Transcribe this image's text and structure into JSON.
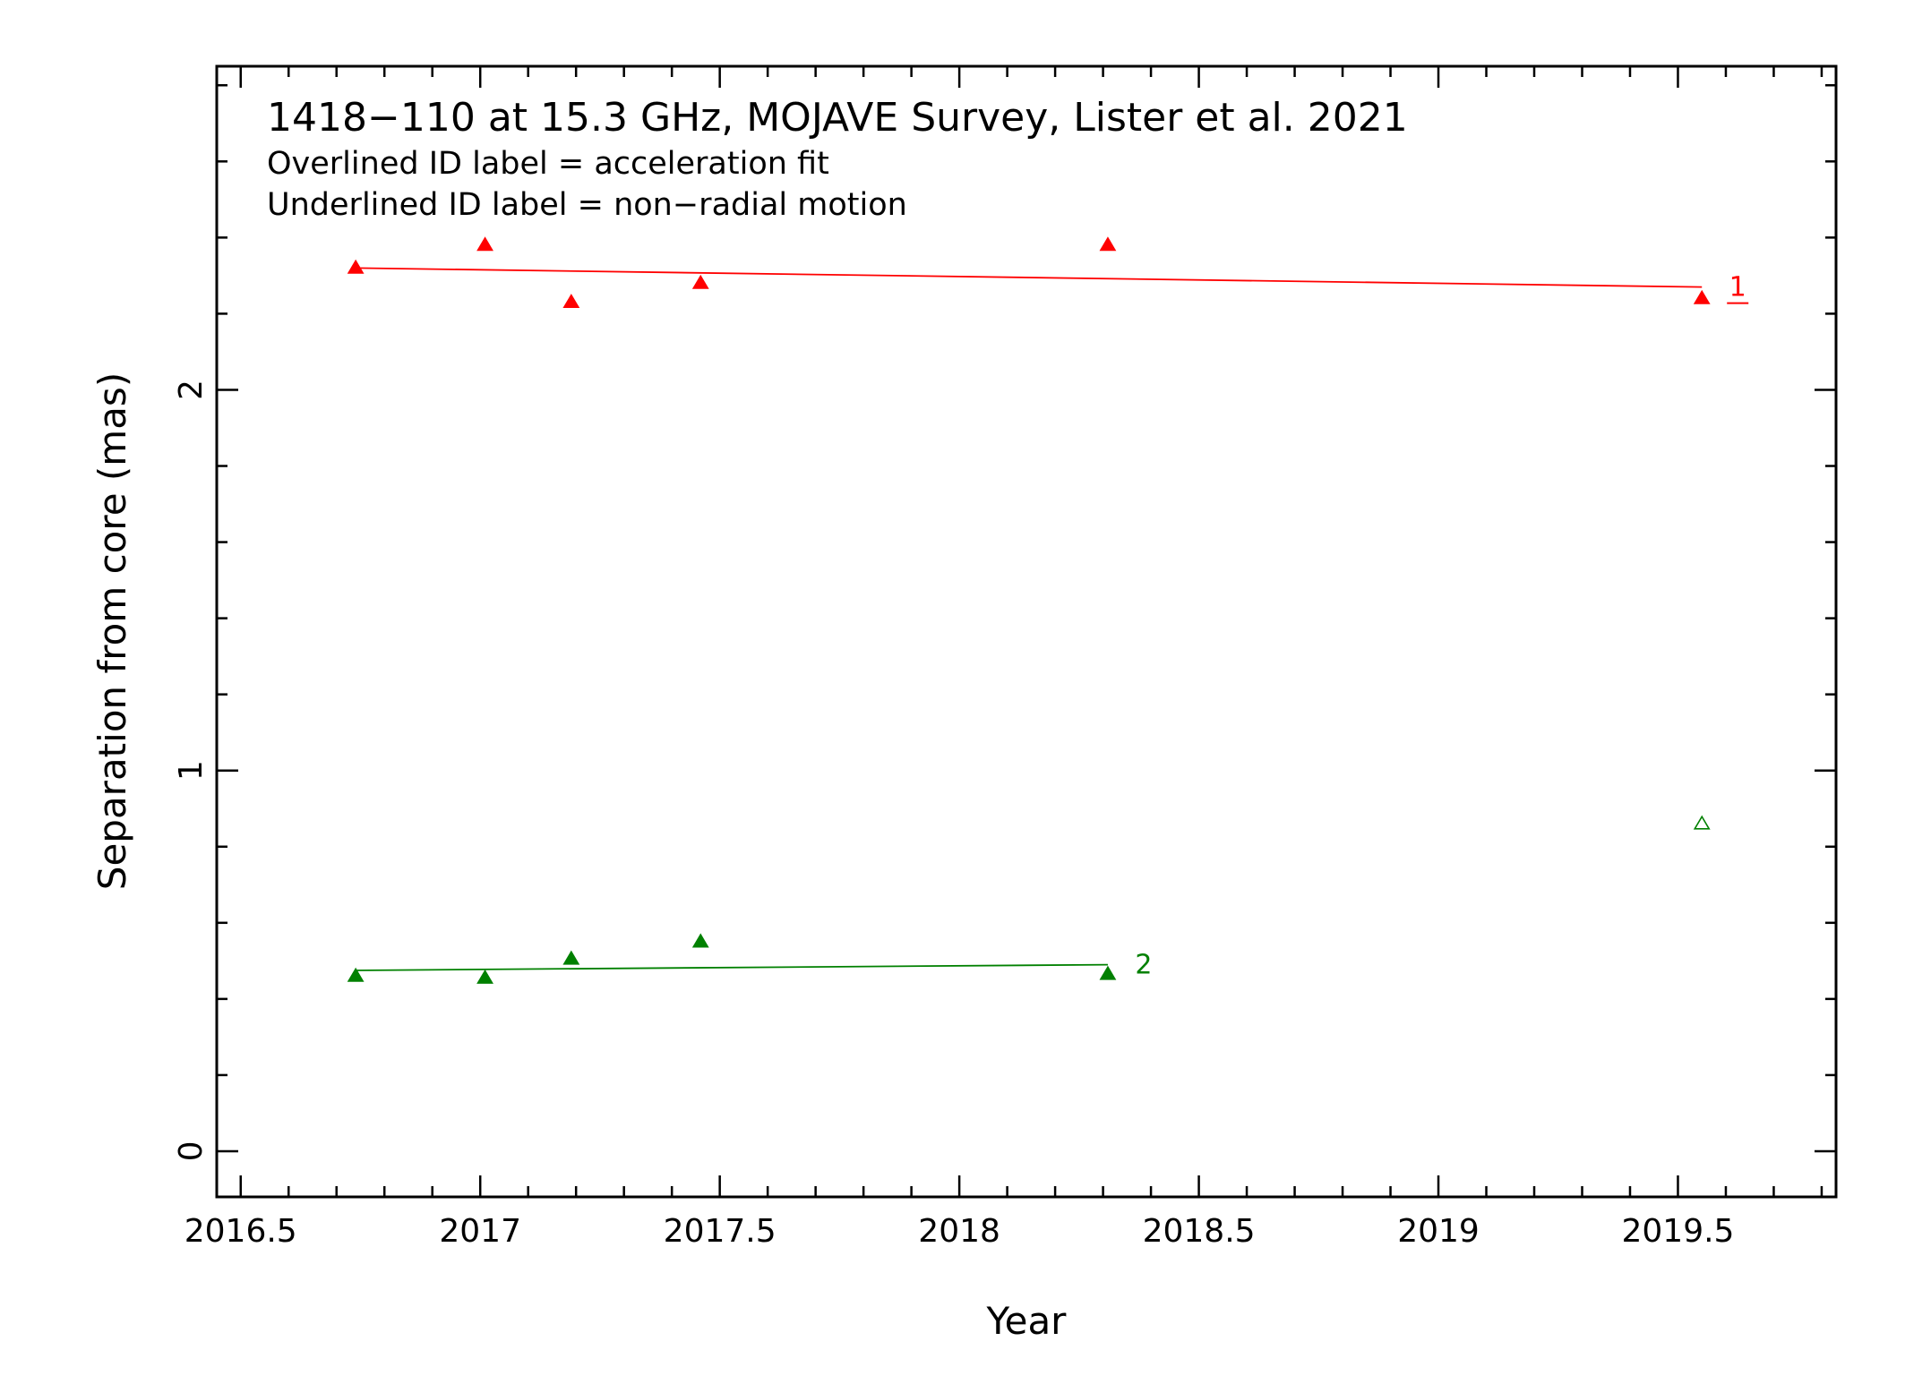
{
  "chart_data": {
    "type": "scatter",
    "title": "1418−110 at 15.3 GHz, MOJAVE Survey, Lister et al. 2021",
    "notes": [
      "Overlined ID label = acceleration fit",
      "Underlined ID label = non−radial motion"
    ],
    "xlabel": "Year",
    "ylabel": "Separation from core (mas)",
    "xlim": [
      2016.45,
      2019.83
    ],
    "ylim": [
      -0.12,
      2.85
    ],
    "xticks": [
      2016.5,
      2017,
      2017.5,
      2018,
      2018.5,
      2019,
      2019.5
    ],
    "xtick_labels": [
      "2016.5",
      "2017",
      "2017.5",
      "2018",
      "2018.5",
      "2019",
      "2019.5"
    ],
    "yticks": [
      0,
      1,
      2
    ],
    "ytick_labels": [
      "0",
      "1",
      "2"
    ],
    "grid": false,
    "series": [
      {
        "name": "1",
        "color": "#ff0000",
        "marker": "filled-triangle",
        "label_style": "underlined",
        "x": [
          2016.74,
          2017.01,
          2017.19,
          2017.46,
          2018.31,
          2019.55
        ],
        "y": [
          2.32,
          2.38,
          2.23,
          2.28,
          2.38,
          2.24
        ],
        "fit": {
          "x": [
            2016.74,
            2019.55
          ],
          "y": [
            2.32,
            2.27
          ]
        }
      },
      {
        "name": "2",
        "color": "#008000",
        "marker": "filled-triangle",
        "label_style": "plain",
        "x": [
          2016.74,
          2017.01,
          2017.19,
          2017.46,
          2018.31
        ],
        "y": [
          0.46,
          0.455,
          0.505,
          0.55,
          0.465
        ],
        "fit": {
          "x": [
            2016.74,
            2018.31
          ],
          "y": [
            0.475,
            0.49
          ]
        }
      }
    ],
    "extra_points": [
      {
        "color": "#008000",
        "marker": "open-triangle",
        "x": 2019.55,
        "y": 0.86
      }
    ]
  }
}
